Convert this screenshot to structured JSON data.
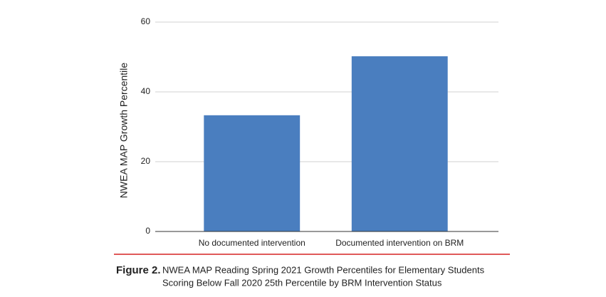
{
  "chart_data": {
    "type": "bar",
    "y_label": "NWEA MAP Growth Percentile",
    "categories": [
      "No documented intervention",
      "Documented intervention on BRM"
    ],
    "values": [
      33.3,
      50.2
    ],
    "color": "#4a7ebf",
    "ylim": [
      0,
      60
    ],
    "yticks": [
      0,
      20,
      40,
      60
    ],
    "grid": true,
    "figure_label": "Figure 2.",
    "caption": [
      "NWEA MAP Reading Spring 2021 Growth Percentiles for Elementary Students",
      "Scoring Below Fall 2020 25th Percentile by BRM Intervention Status"
    ]
  }
}
